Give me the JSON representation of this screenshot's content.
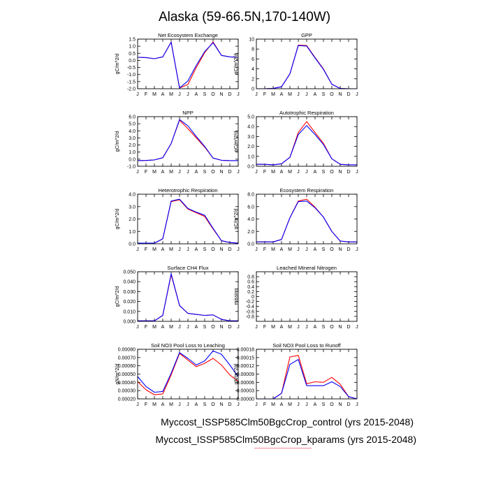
{
  "title": "Alaska (59-66.5N,170-140W)",
  "legend": {
    "control": {
      "text": "Myccost_ISSP585Clm50BgcCrop_control (yrs 2015-2048)",
      "color": "#ff0000"
    },
    "kparams": {
      "text": "Myccost_ISSP585Clm50BgcCrop_kparams (yrs 2015-2048)",
      "color": "#0000ff"
    }
  },
  "chart_data": [
    {
      "type": "line",
      "title": "Net Ecosystem Exchange",
      "ylabel": "gC/m^2/d",
      "xticks": [
        "J",
        "F",
        "M",
        "A",
        "M",
        "J",
        "J",
        "A",
        "S",
        "O",
        "N",
        "D",
        "J"
      ],
      "ylim": [
        -2.0,
        1.5
      ],
      "yticks": [
        "1.5",
        "1.0",
        "0.5",
        "0.0",
        "-0.5",
        "-1.0",
        "-1.5",
        "-2.0"
      ],
      "yticks_v": [
        1.5,
        1.0,
        0.5,
        0.0,
        -0.5,
        -1.0,
        -1.5,
        -2.0
      ],
      "series": [
        {
          "color": "#ff0000",
          "values": [
            0.22,
            0.2,
            0.12,
            0.25,
            1.3,
            -1.95,
            -1.7,
            -0.5,
            0.55,
            1.3,
            0.35,
            0.25,
            0.22
          ]
        },
        {
          "color": "#0000ff",
          "values": [
            0.22,
            0.2,
            0.12,
            0.25,
            1.28,
            -1.95,
            -1.45,
            -0.35,
            0.62,
            1.25,
            0.35,
            0.25,
            0.22
          ]
        }
      ]
    },
    {
      "type": "line",
      "title": "GPP",
      "ylabel": "gC/m^2/d",
      "xticks": [
        "J",
        "F",
        "M",
        "A",
        "M",
        "J",
        "J",
        "A",
        "S",
        "O",
        "N",
        "D",
        "J"
      ],
      "ylim": [
        0,
        10
      ],
      "yticks": [
        "10",
        "8",
        "6",
        "4",
        "2",
        "0"
      ],
      "yticks_v": [
        10,
        8,
        6,
        4,
        2,
        0
      ],
      "series": [
        {
          "color": "#ff0000",
          "values": [
            0,
            0,
            0.05,
            0.4,
            3.0,
            8.8,
            8.7,
            6.3,
            4.0,
            0.9,
            0.05,
            0,
            0
          ]
        },
        {
          "color": "#0000ff",
          "values": [
            0,
            0,
            0.05,
            0.4,
            3.0,
            8.7,
            8.6,
            6.2,
            3.9,
            0.9,
            0.05,
            0,
            0
          ]
        }
      ]
    },
    {
      "type": "line",
      "title": "NPP",
      "ylabel": "gC/m^2/d",
      "xticks": [
        "J",
        "F",
        "M",
        "A",
        "M",
        "J",
        "J",
        "A",
        "S",
        "O",
        "N",
        "D",
        "J"
      ],
      "ylim": [
        -1.0,
        6.0
      ],
      "yticks": [
        "6.0",
        "5.0",
        "4.0",
        "3.0",
        "2.0",
        "1.0",
        "0.0",
        "-1.0"
      ],
      "yticks_v": [
        6,
        5,
        4,
        3,
        2,
        1,
        0,
        -1
      ],
      "series": [
        {
          "color": "#ff0000",
          "values": [
            -0.2,
            -0.18,
            -0.1,
            0.2,
            2.2,
            5.5,
            4.3,
            3.0,
            1.7,
            0.15,
            -0.15,
            -0.2,
            -0.2
          ]
        },
        {
          "color": "#0000ff",
          "values": [
            -0.2,
            -0.18,
            -0.1,
            0.2,
            2.2,
            5.6,
            4.7,
            3.2,
            1.8,
            0.15,
            -0.15,
            -0.2,
            -0.2
          ]
        }
      ]
    },
    {
      "type": "line",
      "title": "Autotrophic Respiration",
      "ylabel": "gC/m^2/d",
      "xticks": [
        "J",
        "F",
        "M",
        "A",
        "M",
        "J",
        "J",
        "A",
        "S",
        "O",
        "N",
        "D",
        "J"
      ],
      "ylim": [
        0,
        5.0
      ],
      "yticks": [
        "5.0",
        "4.0",
        "3.0",
        "2.0",
        "1.0",
        "0.0"
      ],
      "yticks_v": [
        5,
        4,
        3,
        2,
        1,
        0
      ],
      "series": [
        {
          "color": "#ff0000",
          "values": [
            0.2,
            0.2,
            0.15,
            0.25,
            0.9,
            3.4,
            4.5,
            3.4,
            2.3,
            0.75,
            0.2,
            0.15,
            0.15
          ]
        },
        {
          "color": "#0000ff",
          "values": [
            0.2,
            0.2,
            0.15,
            0.25,
            0.9,
            3.2,
            4.1,
            3.2,
            2.2,
            0.75,
            0.2,
            0.15,
            0.15
          ]
        }
      ]
    },
    {
      "type": "line",
      "title": "Heterotrophic Respiration",
      "ylabel": "gC/m^2/d",
      "xticks": [
        "J",
        "F",
        "M",
        "A",
        "M",
        "J",
        "J",
        "A",
        "S",
        "O",
        "N",
        "D",
        "J"
      ],
      "ylim": [
        0,
        4.0
      ],
      "yticks": [
        "4.0",
        "3.0",
        "2.0",
        "1.0",
        "0.0"
      ],
      "yticks_v": [
        4,
        3,
        2,
        1,
        0
      ],
      "series": [
        {
          "color": "#ff0000",
          "values": [
            0.05,
            0.05,
            0.05,
            0.4,
            3.4,
            3.55,
            2.8,
            2.5,
            2.2,
            1.2,
            0.25,
            0.1,
            0.05
          ]
        },
        {
          "color": "#0000ff",
          "values": [
            0.05,
            0.05,
            0.05,
            0.4,
            3.45,
            3.6,
            2.85,
            2.55,
            2.3,
            1.25,
            0.25,
            0.1,
            0.05
          ]
        }
      ]
    },
    {
      "type": "line",
      "title": "Ecosystem Respiration",
      "ylabel": "gC/m^2/d",
      "xticks": [
        "J",
        "F",
        "M",
        "A",
        "M",
        "J",
        "J",
        "A",
        "S",
        "O",
        "N",
        "D",
        "J"
      ],
      "ylim": [
        0,
        8.0
      ],
      "yticks": [
        "8.0",
        "6.0",
        "4.0",
        "2.0",
        "0.0"
      ],
      "yticks_v": [
        8,
        6,
        4,
        2,
        0
      ],
      "series": [
        {
          "color": "#ff0000",
          "values": [
            0.3,
            0.3,
            0.3,
            0.7,
            4.2,
            6.9,
            7.2,
            5.9,
            4.3,
            2.0,
            0.45,
            0.3,
            0.3
          ]
        },
        {
          "color": "#0000ff",
          "values": [
            0.3,
            0.3,
            0.3,
            0.7,
            4.2,
            6.8,
            6.9,
            5.8,
            4.3,
            2.0,
            0.45,
            0.3,
            0.3
          ]
        }
      ]
    },
    {
      "type": "line",
      "title": "Surface CH4 Flux",
      "ylabel": "gC/m^2/d",
      "xticks": [
        "J",
        "F",
        "M",
        "A",
        "M",
        "J",
        "J",
        "A",
        "S",
        "O",
        "N",
        "D",
        "J"
      ],
      "ylim": [
        0,
        0.05
      ],
      "yticks": [
        "0.050",
        "0.040",
        "0.030",
        "0.020",
        "0.010",
        "0.000"
      ],
      "yticks_v": [
        0.05,
        0.04,
        0.03,
        0.02,
        0.01,
        0
      ],
      "series": [
        {
          "color": "#ff0000",
          "values": [
            0.0005,
            0.0005,
            0.0005,
            0.006,
            0.047,
            0.016,
            0.008,
            0.007,
            0.006,
            0.0065,
            0.002,
            0.0005,
            0.0005
          ]
        },
        {
          "color": "#0000ff",
          "values": [
            0.0005,
            0.0005,
            0.0005,
            0.006,
            0.048,
            0.016,
            0.008,
            0.007,
            0.006,
            0.0065,
            0.002,
            0.0005,
            0.0005
          ]
        }
      ]
    },
    {
      "type": "line",
      "title": "Leached Mineral Nitrogen",
      "ylabel": "missing",
      "xticks": [
        "J",
        "F",
        "M",
        "A",
        "M",
        "J",
        "J",
        "A",
        "S",
        "O",
        "N",
        "D",
        "J"
      ],
      "ylim": [
        -1.0,
        1.0
      ],
      "yticks": [
        "0.8",
        "0.6",
        "0.4",
        "0.2",
        "0",
        "-0.2",
        "-0.4",
        "-0.6",
        "-0.8"
      ],
      "yticks_v": [
        0.8,
        0.6,
        0.4,
        0.2,
        0,
        -0.2,
        -0.4,
        -0.6,
        -0.8
      ],
      "series": []
    },
    {
      "type": "line",
      "title": "Soil NO3 Pool Loss to Leaching",
      "ylabel": "gN/m^2/d",
      "xticks": [
        "J",
        "F",
        "M",
        "A",
        "M",
        "J",
        "J",
        "A",
        "S",
        "O",
        "N",
        "D",
        "J"
      ],
      "ylim": [
        0.0002,
        0.0008
      ],
      "yticks": [
        "0.00080",
        "0.00070",
        "0.00060",
        "0.00050",
        "0.00040",
        "0.00030",
        "0.00020"
      ],
      "yticks_v": [
        0.0008,
        0.0007,
        0.0006,
        0.0005,
        0.0004,
        0.0003,
        0.0002
      ],
      "series": [
        {
          "color": "#ff0000",
          "values": [
            0.00041,
            0.00031,
            0.00025,
            0.00026,
            0.00049,
            0.00075,
            0.00067,
            0.00059,
            0.00063,
            0.00069,
            0.00061,
            0.00049,
            0.00041
          ]
        },
        {
          "color": "#0000ff",
          "values": [
            0.00047,
            0.00035,
            0.00028,
            0.00029,
            0.00051,
            0.00076,
            0.00069,
            0.00061,
            0.00066,
            0.00078,
            0.00074,
            0.00061,
            0.00047
          ]
        }
      ]
    },
    {
      "type": "line",
      "title": "Soil NO3 Pool Loss to Runoff",
      "ylabel": "gN/m^2/d",
      "xticks": [
        "J",
        "F",
        "M",
        "A",
        "M",
        "J",
        "J",
        "A",
        "S",
        "O",
        "N",
        "D",
        "J"
      ],
      "ylim": [
        0,
        0.00018
      ],
      "yticks": [
        "0.00018",
        "0.00015",
        "0.00012",
        "0.00009",
        "0.00006",
        "0.00003",
        "0.00000"
      ],
      "yticks_v": [
        0.00018,
        0.00015,
        0.00012,
        9e-05,
        6e-05,
        3e-05,
        0
      ],
      "series": [
        {
          "color": "#ff0000",
          "values": [
            0,
            0,
            0,
            2e-05,
            0.000152,
            0.000158,
            5.5e-05,
            6.2e-05,
            6e-05,
            7.8e-05,
            5.3e-05,
            8e-06,
            0
          ]
        },
        {
          "color": "#0000ff",
          "values": [
            0,
            0,
            0,
            2e-05,
            0.000125,
            0.000143,
            4.8e-05,
            4.8e-05,
            4.8e-05,
            6.2e-05,
            4.5e-05,
            8e-06,
            0
          ]
        }
      ]
    }
  ]
}
